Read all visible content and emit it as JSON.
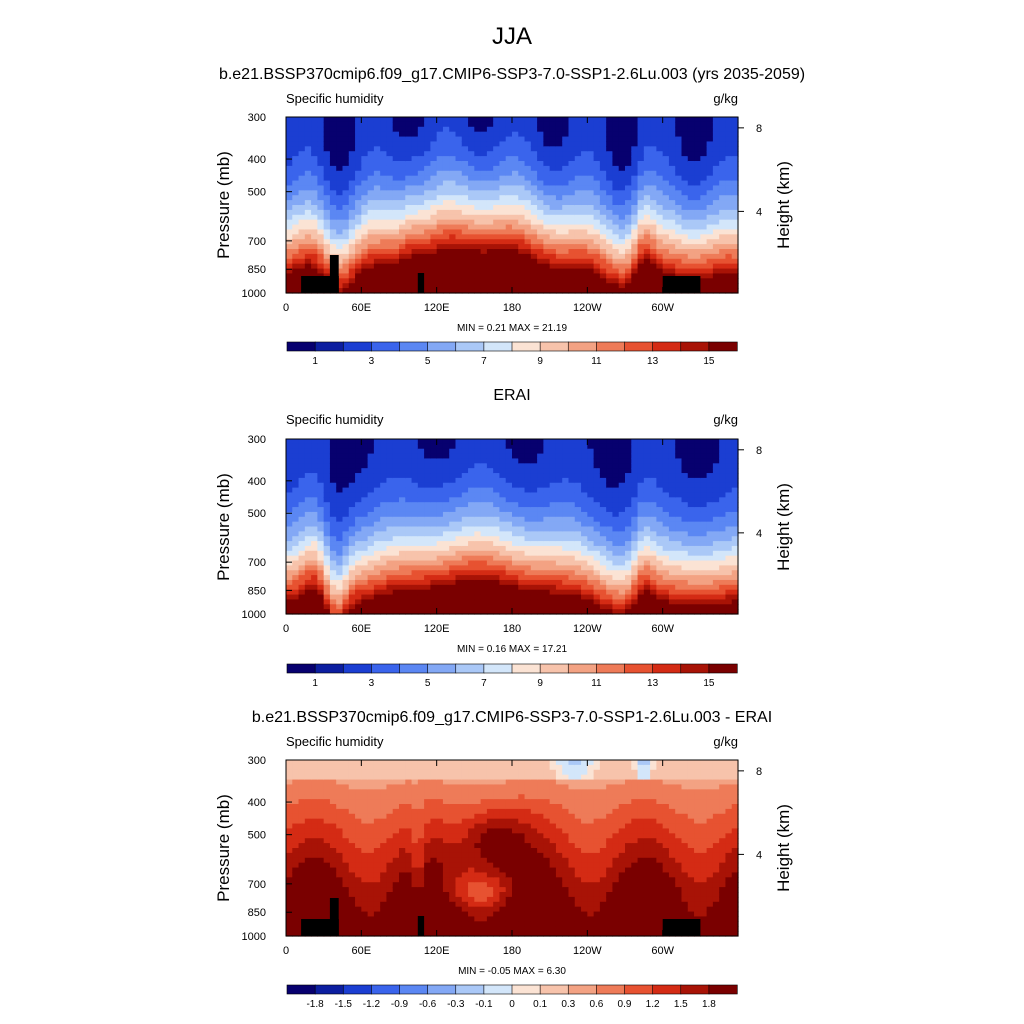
{
  "figure": {
    "title": "JJA"
  },
  "chart_data": [
    {
      "type": "heatmap",
      "title": "b.e21.BSSP370cmip6.f09_g17.CMIP6-SSP3-7.0-SSP1-2.6Lu.003 (yrs 2035-2059)",
      "left_label": "Specific humidity",
      "right_label": "g/kg",
      "ylabel": "Pressure (mb)",
      "ylabel_right": "Height (km)",
      "x_ticks": [
        "0",
        "60E",
        "120E",
        "180",
        "120W",
        "60W"
      ],
      "y_ticks": [
        "300",
        "400",
        "500",
        "700",
        "850",
        "1000"
      ],
      "y_right_ticks": [
        "8",
        "4"
      ],
      "stats": "MIN =   0.21  MAX =  21.19",
      "colorbar_labels": [
        "1",
        "3",
        "5",
        "7",
        "9",
        "11",
        "13",
        "15"
      ],
      "colorbar_colors": [
        "#07006f",
        "#0c1ea0",
        "#1b3ed2",
        "#3a64ec",
        "#5b87f3",
        "#83a8f5",
        "#aac8f7",
        "#d3e6fa",
        "#fbe3d4",
        "#f7c3ab",
        "#f3a283",
        "#ee7b58",
        "#e75231",
        "#d42b14",
        "#a81306",
        "#7a0000"
      ],
      "fields": {
        "field_kind": "control"
      }
    },
    {
      "type": "heatmap",
      "title": "ERAI",
      "left_label": "Specific humidity",
      "right_label": "g/kg",
      "ylabel": "Pressure (mb)",
      "ylabel_right": "Height (km)",
      "x_ticks": [
        "0",
        "60E",
        "120E",
        "180",
        "120W",
        "60W"
      ],
      "y_ticks": [
        "300",
        "400",
        "500",
        "700",
        "850",
        "1000"
      ],
      "y_right_ticks": [
        "8",
        "4"
      ],
      "stats": "MIN =   0.16  MAX =  17.21",
      "colorbar_labels": [
        "1",
        "3",
        "5",
        "7",
        "9",
        "11",
        "13",
        "15"
      ],
      "colorbar_colors": [
        "#07006f",
        "#0c1ea0",
        "#1b3ed2",
        "#3a64ec",
        "#5b87f3",
        "#83a8f5",
        "#aac8f7",
        "#d3e6fa",
        "#fbe3d4",
        "#f7c3ab",
        "#f3a283",
        "#ee7b58",
        "#e75231",
        "#d42b14",
        "#a81306",
        "#7a0000"
      ],
      "fields": {
        "field_kind": "obs"
      }
    },
    {
      "type": "heatmap",
      "title": "b.e21.BSSP370cmip6.f09_g17.CMIP6-SSP3-7.0-SSP1-2.6Lu.003 - ERAI",
      "left_label": "Specific humidity",
      "right_label": "g/kg",
      "ylabel": "Pressure (mb)",
      "ylabel_right": "Height (km)",
      "x_ticks": [
        "0",
        "60E",
        "120E",
        "180",
        "120W",
        "60W"
      ],
      "y_ticks": [
        "300",
        "400",
        "500",
        "700",
        "850",
        "1000"
      ],
      "y_right_ticks": [
        "8",
        "4"
      ],
      "stats": "MIN =  -0.05  MAX =   6.30",
      "colorbar_labels": [
        "-1.8",
        "-1.5",
        "-1.2",
        "-0.9",
        "-0.6",
        "-0.3",
        "-0.1",
        "0",
        "0.1",
        "0.3",
        "0.6",
        "0.9",
        "1.2",
        "1.5",
        "1.8"
      ],
      "colorbar_colors": [
        "#07006f",
        "#0c1ea0",
        "#1b3ed2",
        "#3a64ec",
        "#5b87f3",
        "#83a8f5",
        "#aac8f7",
        "#d3e6fa",
        "#fbe3d4",
        "#f7c3ab",
        "#f3a283",
        "#ee7b58",
        "#e75231",
        "#d42b14",
        "#a81306",
        "#7a0000"
      ],
      "fields": {
        "field_kind": "diff"
      }
    }
  ]
}
